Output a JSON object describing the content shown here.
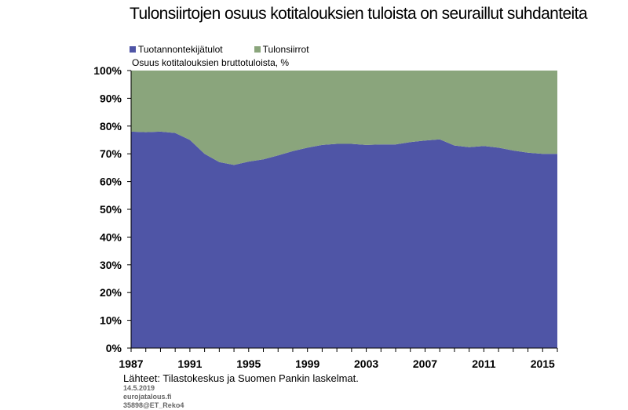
{
  "chart_data": {
    "type": "area",
    "stacked": true,
    "title": "Tulonsiirtojen osuus kotitalouksien tuloista on seuraillut suhdanteita",
    "subtitle": "Osuus kotitalouksien bruttotuloista, %",
    "xlabel": "",
    "ylabel": "",
    "x": [
      1987,
      1988,
      1989,
      1990,
      1991,
      1992,
      1993,
      1994,
      1995,
      1996,
      1997,
      1998,
      1999,
      2000,
      2001,
      2002,
      2003,
      2004,
      2005,
      2006,
      2007,
      2008,
      2009,
      2010,
      2011,
      2012,
      2013,
      2014,
      2015,
      2016
    ],
    "xlim": [
      1987,
      2016
    ],
    "ylim": [
      0,
      100
    ],
    "x_ticks": [
      1987,
      1991,
      1995,
      1999,
      2003,
      2007,
      2011,
      2015
    ],
    "y_ticks": [
      0,
      10,
      20,
      30,
      40,
      50,
      60,
      70,
      80,
      90,
      100
    ],
    "y_tick_labels": [
      "0%",
      "10%",
      "20%",
      "30%",
      "40%",
      "50%",
      "60%",
      "70%",
      "80%",
      "90%",
      "100%"
    ],
    "legend_position": "top-left",
    "series": [
      {
        "name": "Tuotannontekijätulot",
        "color": "#4f55a6",
        "values": [
          78,
          77.8,
          78,
          77.5,
          75,
          70,
          67,
          66,
          67.2,
          68,
          69.4,
          71,
          72.2,
          73.2,
          73.6,
          73.6,
          73.2,
          73.4,
          73.4,
          74.2,
          74.8,
          75.2,
          73,
          72.4,
          72.8,
          72.2,
          71.2,
          70.4,
          70,
          70
        ]
      },
      {
        "name": "Tulonsiirrot",
        "color": "#8aa57c",
        "values": [
          22,
          22.2,
          22,
          22.5,
          25,
          30,
          33,
          34,
          32.8,
          32,
          30.6,
          29,
          27.8,
          26.8,
          26.4,
          26.4,
          26.8,
          26.6,
          26.6,
          25.8,
          25.2,
          24.8,
          27,
          27.6,
          27.2,
          27.8,
          28.8,
          29.6,
          30,
          30
        ]
      }
    ]
  },
  "footer": {
    "source": "Lähteet: Tilastokeskus ja Suomen Pankin laskelmat.",
    "date": "14.5.2019",
    "site": "eurojatalous.fi",
    "code": "35898@ET_Reko4"
  }
}
